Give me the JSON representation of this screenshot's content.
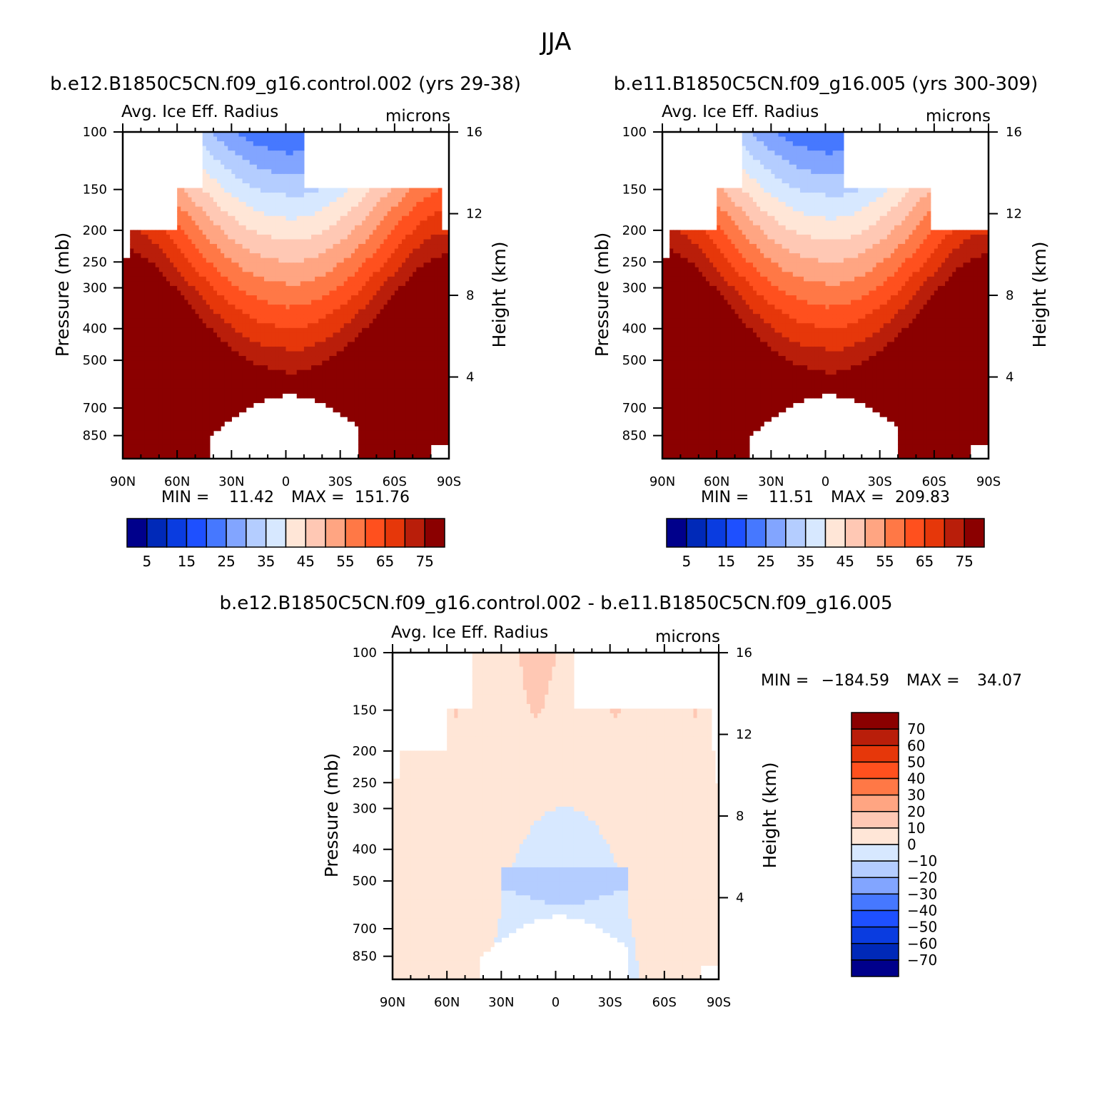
{
  "page_title": "JJA",
  "panels": [
    {
      "case": "b.e12.B1850C5CN.f09_g16.control.002 (yrs 29-38)",
      "left_label": "Avg. Ice Eff. Radius",
      "right_label": "microns",
      "ylabel": "Pressure (mb)",
      "y2label": "Height (km)",
      "stats": {
        "min_label": "MIN =",
        "min": "11.42",
        "max_label": "MAX =",
        "max": "151.76"
      }
    },
    {
      "case": "b.e11.B1850C5CN.f09_g16.005 (yrs 300-309)",
      "left_label": "Avg. Ice Eff. Radius",
      "right_label": "microns",
      "ylabel": "Pressure (mb)",
      "y2label": "Height (km)",
      "stats": {
        "min_label": "MIN =",
        "min": "11.51",
        "max_label": "MAX =",
        "max": "209.83"
      }
    },
    {
      "case": "b.e12.B1850C5CN.f09_g16.control.002 - b.e11.B1850C5CN.f09_g16.005",
      "left_label": "Avg. Ice Eff. Radius",
      "right_label": "microns",
      "ylabel": "Pressure (mb)",
      "y2label": "Height (km)",
      "stats": {
        "min_label": "MIN =",
        "min": "-184.59",
        "max_label": "MAX =",
        "max": "34.07"
      }
    }
  ],
  "chart_data": [
    {
      "type": "heatmap",
      "title": "b.e12.B1850C5CN.f09_g16.control.002 (yrs 29-38)",
      "xlabel": "",
      "ylabel": "Pressure (mb)",
      "y2label": "Height (km)",
      "x_ticks": [
        "90N",
        "60N",
        "30N",
        "0",
        "30S",
        "60S",
        "90S"
      ],
      "y_ticks": [
        "100",
        "150",
        "200",
        "250",
        "300",
        "400",
        "500",
        "700",
        "850"
      ],
      "y2_ticks": [
        "16",
        "12",
        "8",
        "4"
      ],
      "ylim": [
        100,
        1000
      ],
      "y_scale": "log",
      "contour_levels": [
        5,
        10,
        15,
        20,
        25,
        30,
        35,
        40,
        45,
        50,
        55,
        60,
        65,
        70,
        75
      ],
      "colorbar_labels": [
        "5",
        "15",
        "25",
        "35",
        "45",
        "55",
        "65",
        "75"
      ],
      "colorbar_colors": [
        "#00008b",
        "#0029b8",
        "#0a3ce0",
        "#1e50ff",
        "#4678ff",
        "#82a5ff",
        "#b4cdff",
        "#d7e8ff",
        "#ffe6d7",
        "#ffc8b4",
        "#ffa582",
        "#ff7846",
        "#ff501e",
        "#e6370a",
        "#b91e0a",
        "#8b0000"
      ],
      "min": 11.42,
      "max": 151.76
    },
    {
      "type": "heatmap",
      "title": "b.e11.B1850C5CN.f09_g16.005 (yrs 300-309)",
      "xlabel": "",
      "ylabel": "Pressure (mb)",
      "y2label": "Height (km)",
      "x_ticks": [
        "90N",
        "60N",
        "30N",
        "0",
        "30S",
        "60S",
        "90S"
      ],
      "y_ticks": [
        "100",
        "150",
        "200",
        "250",
        "300",
        "400",
        "500",
        "700",
        "850"
      ],
      "y2_ticks": [
        "16",
        "12",
        "8",
        "4"
      ],
      "ylim": [
        100,
        1000
      ],
      "y_scale": "log",
      "contour_levels": [
        5,
        10,
        15,
        20,
        25,
        30,
        35,
        40,
        45,
        50,
        55,
        60,
        65,
        70,
        75
      ],
      "colorbar_labels": [
        "5",
        "15",
        "25",
        "35",
        "45",
        "55",
        "65",
        "75"
      ],
      "colorbar_colors": [
        "#00008b",
        "#0029b8",
        "#0a3ce0",
        "#1e50ff",
        "#4678ff",
        "#82a5ff",
        "#b4cdff",
        "#d7e8ff",
        "#ffe6d7",
        "#ffc8b4",
        "#ffa582",
        "#ff7846",
        "#ff501e",
        "#e6370a",
        "#b91e0a",
        "#8b0000"
      ],
      "min": 11.51,
      "max": 209.83
    },
    {
      "type": "heatmap",
      "title": "b.e12.B1850C5CN.f09_g16.control.002 - b.e11.B1850C5CN.f09_g16.005",
      "xlabel": "",
      "ylabel": "Pressure (mb)",
      "y2label": "Height (km)",
      "x_ticks": [
        "90N",
        "60N",
        "30N",
        "0",
        "30S",
        "60S",
        "90S"
      ],
      "y_ticks": [
        "100",
        "150",
        "200",
        "250",
        "300",
        "400",
        "500",
        "700",
        "850"
      ],
      "y2_ticks": [
        "16",
        "12",
        "8",
        "4"
      ],
      "ylim": [
        100,
        1000
      ],
      "y_scale": "log",
      "contour_levels": [
        -70,
        -60,
        -50,
        -40,
        -30,
        -20,
        -10,
        0,
        10,
        20,
        30,
        40,
        50,
        60,
        70
      ],
      "colorbar_labels": [
        "70",
        "60",
        "50",
        "40",
        "30",
        "20",
        "10",
        "0",
        "-10",
        "-20",
        "-30",
        "-40",
        "-50",
        "-60",
        "-70"
      ],
      "colorbar_colors": [
        "#8b0000",
        "#b91e0a",
        "#e6370a",
        "#ff501e",
        "#ff7846",
        "#ffa582",
        "#ffc8b4",
        "#ffe6d7",
        "#d7e8ff",
        "#b4cdff",
        "#82a5ff",
        "#4678ff",
        "#1e50ff",
        "#0a3ce0",
        "#0029b8",
        "#00008b"
      ],
      "min": -184.59,
      "max": 34.07
    }
  ]
}
